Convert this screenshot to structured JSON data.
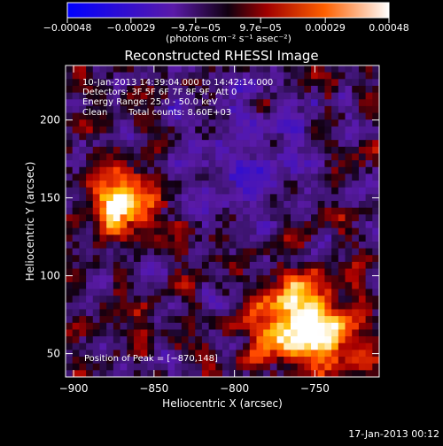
{
  "chart_data": {
    "type": "heatmap",
    "title": "Reconstructed RHESSI Image",
    "xlabel": "Heliocentric X (arcsec)",
    "ylabel": "Heliocentric Y (arcsec)",
    "xlim": [
      -905,
      -710
    ],
    "ylim": [
      35,
      235
    ],
    "x_ticks": [
      {
        "value": -900,
        "label": "−900"
      },
      {
        "value": -850,
        "label": "−850"
      },
      {
        "value": -800,
        "label": "−800"
      },
      {
        "value": -750,
        "label": "−750"
      }
    ],
    "y_ticks": [
      {
        "value": 50,
        "label": "50"
      },
      {
        "value": 100,
        "label": "100"
      },
      {
        "value": 150,
        "label": "150"
      },
      {
        "value": 200,
        "label": "200"
      }
    ],
    "colorbar": {
      "range": [
        -0.00048,
        0.00048
      ],
      "ticks": [
        {
          "value": -0.00048,
          "label": "−0.00048"
        },
        {
          "value": -0.00029,
          "label": "−0.00029"
        },
        {
          "value": -9.7e-05,
          "label": "−9.7e−05"
        },
        {
          "value": 9.7e-05,
          "label": "9.7e−05"
        },
        {
          "value": 0.00029,
          "label": "0.00029"
        },
        {
          "value": 0.00048,
          "label": "0.00048"
        }
      ],
      "unit_label": "(photons cm⁻² s⁻¹ asec⁻²)"
    },
    "sources": [
      {
        "x": -870,
        "y": 148,
        "peak": 0.00048
      },
      {
        "x": -742,
        "y": 58,
        "peak": 0.00042
      },
      {
        "x": -758,
        "y": 82,
        "peak": 0.00036
      },
      {
        "x": -773,
        "y": 62,
        "peak": 0.0003
      }
    ],
    "annotations": {
      "time_range": "10-Jan-2013 14:39:04.000 to 14:42:14.000",
      "detectors": "Detectors: 3F 5F 6F 7F 8F 9F, Att 0",
      "energy_range": "Energy Range: 25.0 - 50.0 keV",
      "clean_label": "Clean",
      "total_counts": "Total counts: 8.60E+03",
      "peak_position": "Position of Peak = [−870,148]"
    },
    "footer_date": "17-Jan-2013 00:12"
  }
}
